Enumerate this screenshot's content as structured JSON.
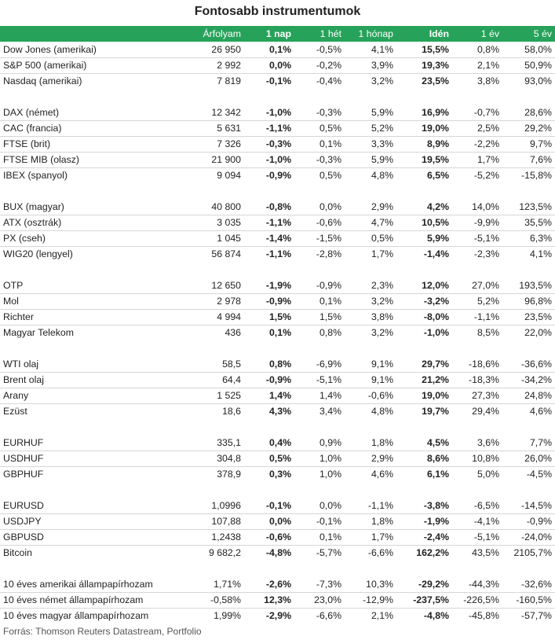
{
  "title": "Fontosabb instrumentumok",
  "accent_color": "#27a25a",
  "headers": [
    "",
    "Árfolyam",
    "1 nap",
    "1 hét",
    "1 hónap",
    "Idén",
    "1 év",
    "5 év"
  ],
  "groups": [
    [
      [
        "Dow Jones (amerikai)",
        "26 950",
        "0,1%",
        "-0,5%",
        "4,1%",
        "15,5%",
        "0,8%",
        "58,0%"
      ],
      [
        "S&P 500 (amerikai)",
        "2 992",
        "0,0%",
        "-0,2%",
        "3,9%",
        "19,3%",
        "2,1%",
        "50,9%"
      ],
      [
        "Nasdaq (amerikai)",
        "7 819",
        "-0,1%",
        "-0,4%",
        "3,2%",
        "23,5%",
        "3,8%",
        "93,0%"
      ]
    ],
    [
      [
        "DAX (német)",
        "12 342",
        "-1,0%",
        "-0,3%",
        "5,9%",
        "16,9%",
        "-0,7%",
        "28,6%"
      ],
      [
        "CAC (francia)",
        "5 631",
        "-1,1%",
        "0,5%",
        "5,2%",
        "19,0%",
        "2,5%",
        "29,2%"
      ],
      [
        "FTSE (brit)",
        "7 326",
        "-0,3%",
        "0,1%",
        "3,3%",
        "8,9%",
        "-2,2%",
        "9,7%"
      ],
      [
        "FTSE MIB (olasz)",
        "21 900",
        "-1,0%",
        "-0,3%",
        "5,9%",
        "19,5%",
        "1,7%",
        "7,6%"
      ],
      [
        "IBEX (spanyol)",
        "9 094",
        "-0,9%",
        "0,5%",
        "4,8%",
        "6,5%",
        "-5,2%",
        "-15,8%"
      ]
    ],
    [
      [
        "BUX (magyar)",
        "40 800",
        "-0,8%",
        "0,0%",
        "2,9%",
        "4,2%",
        "14,0%",
        "123,5%"
      ],
      [
        "ATX (osztrák)",
        "3 035",
        "-1,1%",
        "-0,6%",
        "4,7%",
        "10,5%",
        "-9,9%",
        "35,5%"
      ],
      [
        "PX (cseh)",
        "1 045",
        "-1,4%",
        "-1,5%",
        "0,5%",
        "5,9%",
        "-5,1%",
        "6,3%"
      ],
      [
        "WIG20 (lengyel)",
        "56 874",
        "-1,1%",
        "-2,8%",
        "1,7%",
        "-1,4%",
        "-2,3%",
        "4,1%"
      ]
    ],
    [
      [
        "OTP",
        "12 650",
        "-1,9%",
        "-0,9%",
        "2,3%",
        "12,0%",
        "27,0%",
        "193,5%"
      ],
      [
        "Mol",
        "2 978",
        "-0,9%",
        "0,1%",
        "3,2%",
        "-3,2%",
        "5,2%",
        "96,8%"
      ],
      [
        "Richter",
        "4 994",
        "1,5%",
        "1,5%",
        "3,8%",
        "-8,0%",
        "-1,1%",
        "23,5%"
      ],
      [
        "Magyar Telekom",
        "436",
        "0,1%",
        "0,8%",
        "3,2%",
        "-1,0%",
        "8,5%",
        "22,0%"
      ]
    ],
    [
      [
        "WTI olaj",
        "58,5",
        "0,8%",
        "-6,9%",
        "9,1%",
        "29,7%",
        "-18,6%",
        "-36,6%"
      ],
      [
        "Brent olaj",
        "64,4",
        "-0,9%",
        "-5,1%",
        "9,1%",
        "21,2%",
        "-18,3%",
        "-34,2%"
      ],
      [
        "Arany",
        "1 525",
        "1,4%",
        "1,4%",
        "-0,6%",
        "19,0%",
        "27,3%",
        "24,8%"
      ],
      [
        "Ezüst",
        "18,6",
        "4,3%",
        "3,4%",
        "4,8%",
        "19,7%",
        "29,4%",
        "4,6%"
      ]
    ],
    [
      [
        "EURHUF",
        "335,1",
        "0,4%",
        "0,9%",
        "1,8%",
        "4,5%",
        "3,6%",
        "7,7%"
      ],
      [
        "USDHUF",
        "304,8",
        "0,5%",
        "1,0%",
        "2,9%",
        "8,6%",
        "10,8%",
        "26,0%"
      ],
      [
        "GBPHUF",
        "378,9",
        "0,3%",
        "1,0%",
        "4,6%",
        "6,1%",
        "5,0%",
        "-4,5%"
      ]
    ],
    [
      [
        "EURUSD",
        "1,0996",
        "-0,1%",
        "0,0%",
        "-1,1%",
        "-3,8%",
        "-6,5%",
        "-14,5%"
      ],
      [
        "USDJPY",
        "107,88",
        "0,0%",
        "-0,1%",
        "1,8%",
        "-1,9%",
        "-4,1%",
        "-0,9%"
      ],
      [
        "GBPUSD",
        "1,2438",
        "-0,6%",
        "0,1%",
        "1,7%",
        "-2,4%",
        "-5,1%",
        "-24,0%"
      ],
      [
        "Bitcoin",
        "9 682,2",
        "-4,8%",
        "-5,7%",
        "-6,6%",
        "162,2%",
        "43,5%",
        "2105,7%"
      ]
    ],
    [
      [
        "10 éves amerikai állampapírhozam",
        "1,71%",
        "-2,6%",
        "-7,3%",
        "10,3%",
        "-29,2%",
        "-44,3%",
        "-32,6%"
      ],
      [
        "10 éves német állampapírhozam",
        "-0,58%",
        "12,3%",
        "23,0%",
        "-12,9%",
        "-237,5%",
        "-226,5%",
        "-160,5%"
      ],
      [
        "10 éves magyar állampapírhozam",
        "1,99%",
        "-2,9%",
        "-6,6%",
        "2,1%",
        "-4,8%",
        "-45,8%",
        "-57,7%"
      ]
    ]
  ],
  "source": "Forrás: Thomson Reuters Datastream, Portfolio"
}
